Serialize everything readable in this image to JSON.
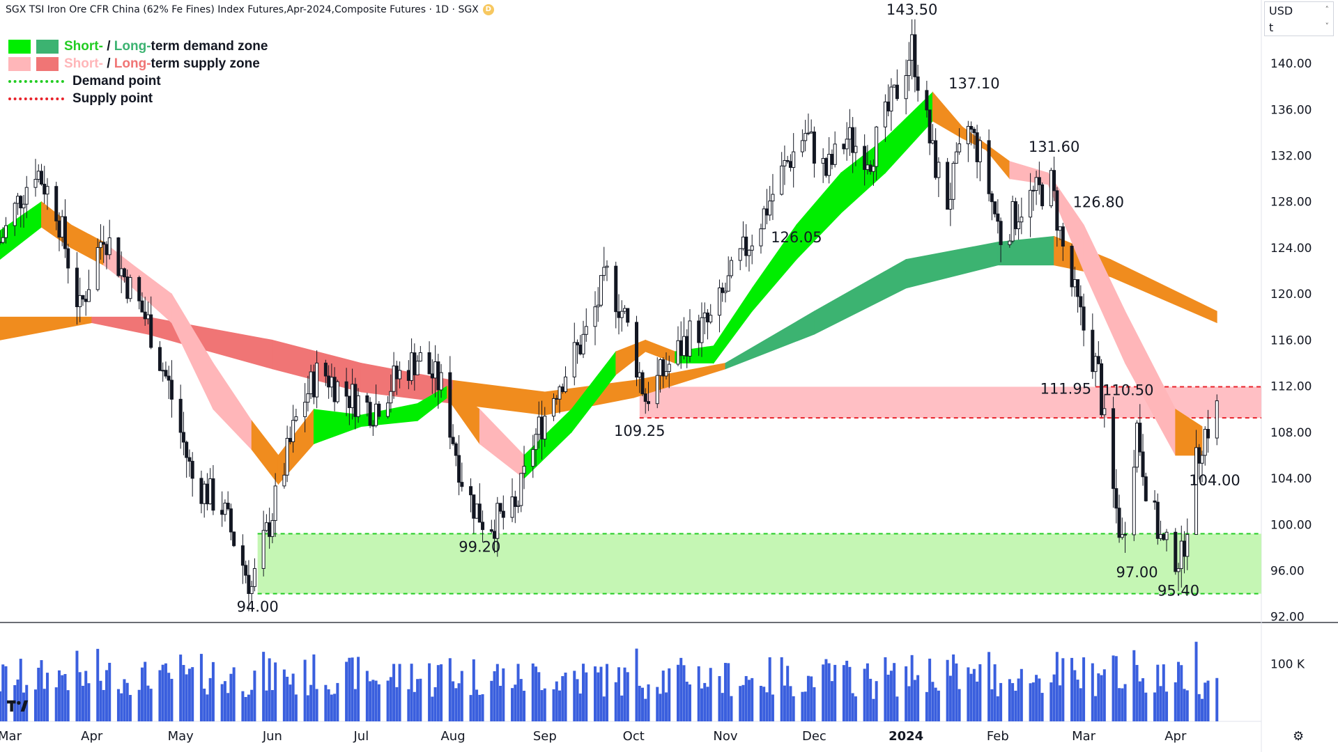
{
  "header": {
    "title": "SGX TSI Iron Ore CFR China (62% Fe Fines) Index Futures,Apr-2024,Composite Futures · 1D · SGX",
    "badge": "D"
  },
  "currency": {
    "line1": "USD",
    "line2": "t",
    "chevron_up": "˄",
    "chevron_down": "˅"
  },
  "legend": {
    "demand_short": "Short-",
    "demand_sep": " / ",
    "demand_long": "Long-",
    "demand_rest": "term demand zone",
    "supply_short": "Short-",
    "supply_sep": " / ",
    "supply_long": "Long-",
    "supply_rest": "term supply zone",
    "demand_point": "Demand point",
    "supply_point": "Supply point"
  },
  "colors": {
    "short_demand": "#00ee00",
    "long_demand": "#3cb371",
    "short_supply": "#ffb6b9",
    "long_supply": "#f07575",
    "orange": "#f08c1e",
    "demand_zone": "#c2f5b0",
    "supply_zone": "#ffbcc1",
    "volume": "#3a5fde",
    "demand_dash": "#22cc22",
    "supply_dash": "#e8222a"
  },
  "settings_icon": "⚙",
  "chart_data": {
    "type": "candlestick",
    "price_axis": {
      "ticks": [
        92,
        96,
        100,
        104,
        108,
        112,
        116,
        120,
        124,
        128,
        132,
        136,
        140
      ],
      "tick_labels": [
        "92.00",
        "96.00",
        "100.00",
        "104.00",
        "108.00",
        "112.00",
        "116.00",
        "120.00",
        "124.00",
        "128.00",
        "132.00",
        "136.00",
        "140.00"
      ],
      "range": [
        91.5,
        145.5
      ]
    },
    "time_axis": {
      "labels": [
        "Mar",
        "Apr",
        "May",
        "Jun",
        "Jul",
        "Aug",
        "Sep",
        "Oct",
        "Nov",
        "Dec",
        "2024",
        "Feb",
        "Mar",
        "Apr"
      ],
      "label_dates": [
        "2023-03-01",
        "2023-04-01",
        "2023-05-01",
        "2023-06-01",
        "2023-07-01",
        "2023-08-01",
        "2023-09-01",
        "2023-10-01",
        "2023-11-01",
        "2023-12-01",
        "2024-01-01",
        "2024-02-01",
        "2024-03-01",
        "2024-04-01"
      ],
      "range": [
        "2023-03-01",
        "2024-04-30"
      ]
    },
    "volume_axis": {
      "ticks": [
        100000
      ],
      "tick_labels": [
        "100 K"
      ]
    },
    "annotations": [
      {
        "text": "143.50",
        "date": "2024-01-03",
        "price": 143.5,
        "pos": "above"
      },
      {
        "text": "137.10",
        "date": "2024-01-24",
        "price": 137.1,
        "pos": "above"
      },
      {
        "text": "131.60",
        "date": "2024-02-20",
        "price": 131.6,
        "pos": "above"
      },
      {
        "text": "126.80",
        "date": "2024-03-06",
        "price": 126.8,
        "pos": "above"
      },
      {
        "text": "126.05",
        "date": "2023-11-25",
        "price": 126.05,
        "pos": "below"
      },
      {
        "text": "109.25",
        "date": "2023-10-03",
        "price": 109.25,
        "pos": "below"
      },
      {
        "text": "111.95",
        "date": "2024-03-05",
        "price": 111.95,
        "pos": "left"
      },
      {
        "text": "110.50",
        "date": "2024-03-16",
        "price": 110.5,
        "pos": "above"
      },
      {
        "text": "104.00",
        "date": "2024-04-07",
        "price": 104.0,
        "pos": "right"
      },
      {
        "text": "99.20",
        "date": "2023-08-10",
        "price": 99.2,
        "pos": "below"
      },
      {
        "text": "94.00",
        "date": "2023-05-27",
        "price": 94.0,
        "pos": "below"
      },
      {
        "text": "97.00",
        "date": "2024-03-19",
        "price": 97.0,
        "pos": "below"
      },
      {
        "text": "95.40",
        "date": "2024-04-02",
        "price": 95.4,
        "pos": "below"
      }
    ],
    "zones": [
      {
        "kind": "demand",
        "from": "2023-05-27",
        "to": "2024-04-30",
        "low": 94.0,
        "high": 99.2
      },
      {
        "kind": "supply",
        "from": "2023-10-03",
        "to": "2024-04-30",
        "low": 109.25,
        "high": 111.95
      }
    ],
    "dashed_lines": [
      {
        "kind": "demand",
        "price": 99.2,
        "from": "2023-05-27"
      },
      {
        "kind": "demand",
        "price": 94.0,
        "from": "2023-05-27"
      },
      {
        "kind": "supply",
        "price": 109.25,
        "from": "2023-10-03"
      },
      {
        "kind": "supply",
        "price": 111.95,
        "from": "2024-03-05"
      }
    ],
    "price_path": [
      [
        "2023-03-01",
        124.5
      ],
      [
        "2023-03-08",
        128.5
      ],
      [
        "2023-03-13",
        131.0
      ],
      [
        "2023-03-20",
        127.5
      ],
      [
        "2023-03-28",
        118.5
      ],
      [
        "2023-04-05",
        125.5
      ],
      [
        "2023-04-12",
        121.5
      ],
      [
        "2023-04-20",
        117.5
      ],
      [
        "2023-04-27",
        112.0
      ],
      [
        "2023-05-05",
        104.0
      ],
      [
        "2023-05-15",
        101.5
      ],
      [
        "2023-05-25",
        94.5
      ],
      [
        "2023-06-02",
        102.0
      ],
      [
        "2023-06-10",
        110.0
      ],
      [
        "2023-06-17",
        113.5
      ],
      [
        "2023-06-25",
        111.5
      ],
      [
        "2023-07-05",
        110.0
      ],
      [
        "2023-07-12",
        112.5
      ],
      [
        "2023-07-20",
        114.5
      ],
      [
        "2023-07-28",
        112.0
      ],
      [
        "2023-08-05",
        103.0
      ],
      [
        "2023-08-12",
        100.0
      ],
      [
        "2023-08-22",
        101.0
      ],
      [
        "2023-08-28",
        107.0
      ],
      [
        "2023-09-05",
        112.0
      ],
      [
        "2023-09-15",
        116.5
      ],
      [
        "2023-09-22",
        121.5
      ],
      [
        "2023-09-28",
        118.0
      ],
      [
        "2023-10-05",
        111.0
      ],
      [
        "2023-10-12",
        113.5
      ],
      [
        "2023-10-20",
        116.5
      ],
      [
        "2023-10-27",
        117.5
      ],
      [
        "2023-11-05",
        122.5
      ],
      [
        "2023-11-14",
        127.0
      ],
      [
        "2023-11-21",
        131.0
      ],
      [
        "2023-11-28",
        134.0
      ],
      [
        "2023-12-05",
        130.5
      ],
      [
        "2023-12-12",
        133.5
      ],
      [
        "2023-12-20",
        132.0
      ],
      [
        "2023-12-28",
        137.0
      ],
      [
        "2024-01-03",
        141.5
      ],
      [
        "2024-01-10",
        132.0
      ],
      [
        "2024-01-15",
        128.0
      ],
      [
        "2024-01-22",
        134.5
      ],
      [
        "2024-01-26",
        132.0
      ],
      [
        "2024-02-02",
        125.0
      ],
      [
        "2024-02-10",
        128.0
      ],
      [
        "2024-02-19",
        129.5
      ],
      [
        "2024-02-24",
        122.5
      ],
      [
        "2024-03-01",
        117.0
      ],
      [
        "2024-03-06",
        113.0
      ],
      [
        "2024-03-10",
        104.0
      ],
      [
        "2024-03-14",
        98.5
      ],
      [
        "2024-03-19",
        108.5
      ],
      [
        "2024-03-23",
        102.0
      ],
      [
        "2024-03-28",
        98.0
      ],
      [
        "2024-04-03",
        97.0
      ],
      [
        "2024-04-07",
        104.0
      ],
      [
        "2024-04-10",
        107.5
      ],
      [
        "2024-04-15",
        110.0
      ]
    ],
    "ribbons": {
      "short_term": [
        [
          "2023-03-01",
          123.0,
          125.5,
          "demand"
        ],
        [
          "2023-03-15",
          125.8,
          128.0,
          "demand"
        ],
        [
          "2023-03-25",
          124.0,
          126.0,
          "orange"
        ],
        [
          "2023-04-05",
          122.5,
          124.5,
          "orange"
        ],
        [
          "2023-04-15",
          120.5,
          122.5,
          "supply"
        ],
        [
          "2023-04-28",
          117.5,
          120.0,
          "supply"
        ],
        [
          "2023-05-12",
          110.0,
          114.0,
          "supply"
        ],
        [
          "2023-05-25",
          106.5,
          109.0,
          "supply"
        ],
        [
          "2023-06-03",
          103.5,
          106.0,
          "orange"
        ],
        [
          "2023-06-15",
          107.0,
          110.0,
          "orange"
        ],
        [
          "2023-07-01",
          108.5,
          109.5,
          "demand"
        ],
        [
          "2023-07-20",
          109.0,
          110.5,
          "demand"
        ],
        [
          "2023-07-30",
          111.0,
          112.0,
          "demand"
        ],
        [
          "2023-08-10",
          107.0,
          110.0,
          "orange"
        ],
        [
          "2023-08-25",
          104.0,
          106.0,
          "supply"
        ],
        [
          "2023-09-10",
          108.0,
          110.0,
          "demand"
        ],
        [
          "2023-09-25",
          113.0,
          115.0,
          "demand"
        ],
        [
          "2023-10-05",
          115.0,
          116.0,
          "orange"
        ],
        [
          "2023-10-15",
          114.0,
          115.0,
          "orange"
        ],
        [
          "2023-10-28",
          114.0,
          115.5,
          "demand"
        ],
        [
          "2023-11-10",
          118.5,
          120.5,
          "demand"
        ],
        [
          "2023-11-25",
          123.0,
          126.0,
          "demand"
        ],
        [
          "2023-12-10",
          127.0,
          130.5,
          "demand"
        ],
        [
          "2023-12-25",
          130.5,
          133.5,
          "demand"
        ],
        [
          "2024-01-10",
          135.0,
          137.5,
          "demand"
        ],
        [
          "2024-01-20",
          133.5,
          134.5,
          "orange"
        ],
        [
          "2024-01-28",
          132.5,
          133.0,
          "orange"
        ],
        [
          "2024-02-05",
          130.0,
          131.5,
          "orange"
        ],
        [
          "2024-02-18",
          129.5,
          130.5,
          "supply"
        ],
        [
          "2024-03-01",
          122.0,
          126.0,
          "supply"
        ],
        [
          "2024-03-15",
          114.0,
          118.5,
          "supply"
        ],
        [
          "2024-04-01",
          106.0,
          110.0,
          "supply"
        ],
        [
          "2024-04-10",
          106.0,
          108.5,
          "orange"
        ]
      ],
      "long_term": [
        [
          "2023-03-01",
          116.0,
          118.0,
          "orange"
        ],
        [
          "2023-04-01",
          117.5,
          118.0,
          "orange"
        ],
        [
          "2023-04-20",
          116.5,
          118.0,
          "supply"
        ],
        [
          "2023-06-01",
          113.5,
          116.0,
          "supply"
        ],
        [
          "2023-07-01",
          111.5,
          114.0,
          "supply"
        ],
        [
          "2023-08-01",
          110.5,
          112.5,
          "supply"
        ],
        [
          "2023-09-01",
          109.5,
          111.5,
          "orange"
        ],
        [
          "2023-10-01",
          111.0,
          112.5,
          "orange"
        ],
        [
          "2023-11-01",
          113.5,
          114.0,
          "orange"
        ],
        [
          "2023-12-01",
          116.5,
          118.5,
          "demand"
        ],
        [
          "2024-01-01",
          120.5,
          123.0,
          "demand"
        ],
        [
          "2024-02-01",
          122.5,
          124.5,
          "demand"
        ],
        [
          "2024-02-20",
          122.5,
          125.0,
          "demand"
        ],
        [
          "2024-03-10",
          121.5,
          123.0,
          "orange"
        ],
        [
          "2024-04-15",
          117.5,
          118.5,
          "orange"
        ]
      ]
    },
    "volume": {
      "unit": "contracts",
      "base": 35000,
      "scale_max": 160000
    }
  }
}
